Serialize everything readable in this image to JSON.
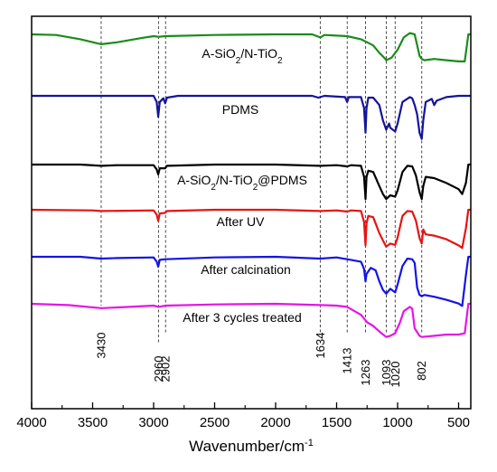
{
  "chart_data": {
    "type": "line",
    "title": "",
    "xlabel": "Wavenumber/cm",
    "xlabel_superscript": "-1",
    "ylabel": "",
    "xlim": [
      4000,
      400
    ],
    "x_reversed": true,
    "xticks": [
      4000,
      3500,
      3000,
      2500,
      2000,
      1500,
      1000,
      500
    ],
    "grid": false,
    "legend": "none",
    "annotations": [
      {
        "x": 3430,
        "label": "3430"
      },
      {
        "x": 2960,
        "label": "2960"
      },
      {
        "x": 2902,
        "label": "2902"
      },
      {
        "x": 1634,
        "label": "1634"
      },
      {
        "x": 1413,
        "label": "1413"
      },
      {
        "x": 1263,
        "label": "1263"
      },
      {
        "x": 1093,
        "label": "1093"
      },
      {
        "x": 1020,
        "label": "1020"
      },
      {
        "x": 802,
        "label": "802"
      }
    ],
    "series": [
      {
        "name": "A-SiO2/N-TiO2",
        "label_parts": [
          [
            "A-SiO",
            ""
          ],
          [
            "2",
            "sub"
          ],
          [
            "/N-TiO",
            ""
          ],
          [
            "2",
            "sub"
          ]
        ],
        "color": "#1a8c1a",
        "baseline": 0.0,
        "points": [
          [
            4000,
            0
          ],
          [
            3800,
            1
          ],
          [
            3600,
            8
          ],
          [
            3430,
            16
          ],
          [
            3300,
            13
          ],
          [
            3100,
            6
          ],
          [
            3000,
            3
          ],
          [
            2960,
            4
          ],
          [
            2902,
            3
          ],
          [
            2500,
            1
          ],
          [
            2000,
            0
          ],
          [
            1700,
            0
          ],
          [
            1634,
            5
          ],
          [
            1600,
            1
          ],
          [
            1413,
            3
          ],
          [
            1300,
            8
          ],
          [
            1200,
            18
          ],
          [
            1150,
            30
          ],
          [
            1100,
            40
          ],
          [
            1093,
            42
          ],
          [
            1050,
            38
          ],
          [
            1000,
            25
          ],
          [
            950,
            5
          ],
          [
            900,
            -2
          ],
          [
            860,
            0
          ],
          [
            820,
            35
          ],
          [
            802,
            40
          ],
          [
            780,
            42
          ],
          [
            700,
            40
          ],
          [
            600,
            42
          ],
          [
            500,
            44
          ],
          [
            450,
            44
          ],
          [
            420,
            0
          ],
          [
            400,
            0
          ]
        ]
      },
      {
        "name": "PDMS",
        "label_parts": [
          [
            "PDMS",
            ""
          ]
        ],
        "color": "#14149a",
        "baseline": 0.0,
        "points": [
          [
            4000,
            0
          ],
          [
            3500,
            0
          ],
          [
            3000,
            0
          ],
          [
            2975,
            10
          ],
          [
            2962,
            34
          ],
          [
            2950,
            10
          ],
          [
            2920,
            4
          ],
          [
            2905,
            12
          ],
          [
            2890,
            3
          ],
          [
            2800,
            0
          ],
          [
            2000,
            0
          ],
          [
            1700,
            0
          ],
          [
            1650,
            3
          ],
          [
            1600,
            0
          ],
          [
            1430,
            2
          ],
          [
            1413,
            10
          ],
          [
            1400,
            2
          ],
          [
            1300,
            2
          ],
          [
            1275,
            20
          ],
          [
            1263,
            60
          ],
          [
            1255,
            20
          ],
          [
            1240,
            3
          ],
          [
            1200,
            3
          ],
          [
            1150,
            15
          ],
          [
            1120,
            40
          ],
          [
            1093,
            55
          ],
          [
            1070,
            45
          ],
          [
            1060,
            52
          ],
          [
            1020,
            58
          ],
          [
            1000,
            45
          ],
          [
            960,
            10
          ],
          [
            900,
            2
          ],
          [
            880,
            4
          ],
          [
            860,
            15
          ],
          [
            840,
            30
          ],
          [
            820,
            60
          ],
          [
            802,
            70
          ],
          [
            790,
            40
          ],
          [
            770,
            10
          ],
          [
            720,
            5
          ],
          [
            700,
            15
          ],
          [
            680,
            8
          ],
          [
            600,
            2
          ],
          [
            500,
            0
          ],
          [
            450,
            0
          ],
          [
            420,
            0
          ],
          [
            400,
            0
          ]
        ]
      },
      {
        "name": "A-SiO2/N-TiO2@PDMS",
        "label_parts": [
          [
            "A-SiO",
            ""
          ],
          [
            "2",
            "sub"
          ],
          [
            "/N-TiO",
            ""
          ],
          [
            "2",
            "sub"
          ],
          [
            "@PDMS",
            ""
          ]
        ],
        "color": "#000000",
        "baseline": 0.0,
        "points": [
          [
            4000,
            0
          ],
          [
            3600,
            0
          ],
          [
            3430,
            2
          ],
          [
            3300,
            1
          ],
          [
            3000,
            1
          ],
          [
            2975,
            8
          ],
          [
            2962,
            16
          ],
          [
            2950,
            6
          ],
          [
            2905,
            6
          ],
          [
            2890,
            2
          ],
          [
            2500,
            0
          ],
          [
            2000,
            0
          ],
          [
            1634,
            2
          ],
          [
            1500,
            1
          ],
          [
            1413,
            3
          ],
          [
            1380,
            1
          ],
          [
            1300,
            2
          ],
          [
            1275,
            20
          ],
          [
            1263,
            56
          ],
          [
            1255,
            20
          ],
          [
            1240,
            10
          ],
          [
            1200,
            12
          ],
          [
            1150,
            35
          ],
          [
            1120,
            48
          ],
          [
            1093,
            56
          ],
          [
            1060,
            50
          ],
          [
            1020,
            52
          ],
          [
            1000,
            42
          ],
          [
            960,
            12
          ],
          [
            920,
            2
          ],
          [
            880,
            3
          ],
          [
            850,
            18
          ],
          [
            820,
            45
          ],
          [
            802,
            56
          ],
          [
            790,
            35
          ],
          [
            770,
            20
          ],
          [
            700,
            22
          ],
          [
            600,
            30
          ],
          [
            500,
            40
          ],
          [
            470,
            48
          ],
          [
            440,
            30
          ],
          [
            420,
            0
          ],
          [
            400,
            0
          ]
        ]
      },
      {
        "name": "After UV",
        "label_parts": [
          [
            "After UV",
            ""
          ]
        ],
        "color": "#e61414",
        "baseline": 0.0,
        "points": [
          [
            4000,
            0
          ],
          [
            3500,
            1
          ],
          [
            3430,
            2
          ],
          [
            3000,
            1
          ],
          [
            2975,
            8
          ],
          [
            2962,
            18
          ],
          [
            2950,
            6
          ],
          [
            2905,
            5
          ],
          [
            2890,
            2
          ],
          [
            2500,
            0
          ],
          [
            2000,
            0
          ],
          [
            1634,
            2
          ],
          [
            1500,
            1
          ],
          [
            1413,
            3
          ],
          [
            1380,
            1
          ],
          [
            1300,
            2
          ],
          [
            1275,
            20
          ],
          [
            1263,
            58
          ],
          [
            1255,
            22
          ],
          [
            1240,
            10
          ],
          [
            1200,
            12
          ],
          [
            1150,
            38
          ],
          [
            1120,
            50
          ],
          [
            1093,
            60
          ],
          [
            1060,
            55
          ],
          [
            1020,
            57
          ],
          [
            1000,
            45
          ],
          [
            960,
            10
          ],
          [
            920,
            2
          ],
          [
            880,
            3
          ],
          [
            850,
            18
          ],
          [
            820,
            46
          ],
          [
            802,
            55
          ],
          [
            790,
            32
          ],
          [
            770,
            40
          ],
          [
            700,
            42
          ],
          [
            600,
            48
          ],
          [
            500,
            58
          ],
          [
            470,
            62
          ],
          [
            440,
            30
          ],
          [
            420,
            0
          ],
          [
            400,
            0
          ]
        ]
      },
      {
        "name": "After calcination",
        "label_parts": [
          [
            "After calcination",
            ""
          ]
        ],
        "color": "#1414e6",
        "baseline": 0.0,
        "points": [
          [
            4000,
            0
          ],
          [
            3600,
            0
          ],
          [
            3430,
            3
          ],
          [
            3300,
            2
          ],
          [
            3000,
            1
          ],
          [
            2975,
            8
          ],
          [
            2962,
            16
          ],
          [
            2950,
            5
          ],
          [
            2905,
            4
          ],
          [
            2500,
            1
          ],
          [
            2000,
            0
          ],
          [
            1634,
            3
          ],
          [
            1500,
            1
          ],
          [
            1413,
            4
          ],
          [
            1300,
            8
          ],
          [
            1275,
            20
          ],
          [
            1263,
            40
          ],
          [
            1255,
            28
          ],
          [
            1220,
            18
          ],
          [
            1180,
            22
          ],
          [
            1150,
            40
          ],
          [
            1120,
            54
          ],
          [
            1093,
            60
          ],
          [
            1060,
            52
          ],
          [
            1040,
            55
          ],
          [
            1020,
            58
          ],
          [
            1000,
            45
          ],
          [
            960,
            15
          ],
          [
            920,
            3
          ],
          [
            880,
            4
          ],
          [
            860,
            10
          ],
          [
            840,
            50
          ],
          [
            820,
            62
          ],
          [
            802,
            64
          ],
          [
            780,
            62
          ],
          [
            700,
            65
          ],
          [
            600,
            70
          ],
          [
            500,
            76
          ],
          [
            470,
            80
          ],
          [
            440,
            30
          ],
          [
            420,
            0
          ],
          [
            400,
            0
          ]
        ]
      },
      {
        "name": "After 3 cycles treated",
        "label_parts": [
          [
            "After 3 cycles treated",
            ""
          ]
        ],
        "color": "#e614e6",
        "baseline": 0.0,
        "points": [
          [
            4000,
            0
          ],
          [
            3700,
            2
          ],
          [
            3430,
            7
          ],
          [
            3200,
            5
          ],
          [
            3000,
            3
          ],
          [
            2960,
            5
          ],
          [
            2902,
            3
          ],
          [
            2500,
            1
          ],
          [
            2000,
            0
          ],
          [
            1634,
            2
          ],
          [
            1500,
            3
          ],
          [
            1413,
            5
          ],
          [
            1300,
            18
          ],
          [
            1250,
            30
          ],
          [
            1200,
            36
          ],
          [
            1150,
            45
          ],
          [
            1093,
            54
          ],
          [
            1060,
            52
          ],
          [
            1020,
            48
          ],
          [
            980,
            30
          ],
          [
            950,
            12
          ],
          [
            900,
            5
          ],
          [
            880,
            8
          ],
          [
            860,
            40
          ],
          [
            820,
            52
          ],
          [
            802,
            54
          ],
          [
            700,
            52
          ],
          [
            600,
            50
          ],
          [
            500,
            50
          ],
          [
            450,
            48
          ],
          [
            420,
            0
          ],
          [
            400,
            0
          ]
        ]
      }
    ]
  }
}
